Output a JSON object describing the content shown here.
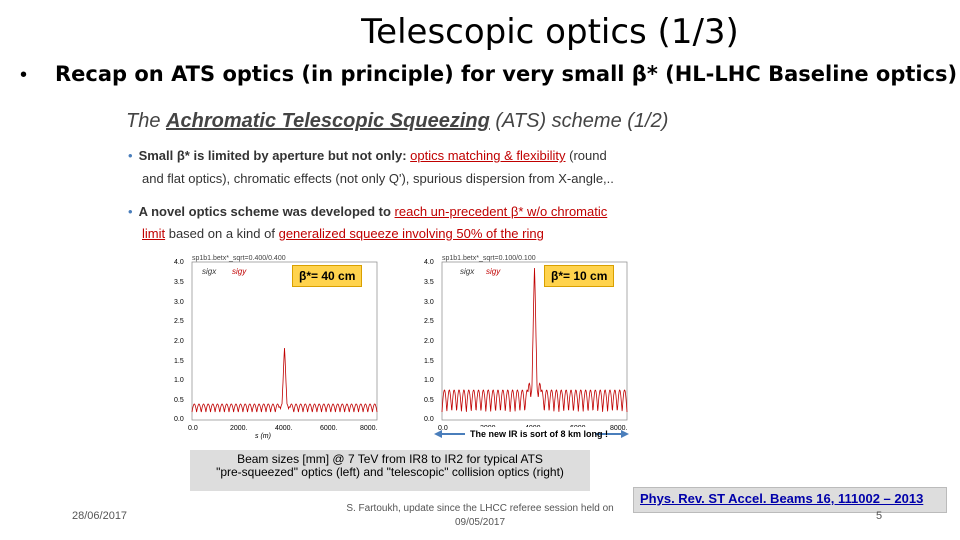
{
  "slide": {
    "title": "Telescopic optics (1/3)",
    "bullet": "•",
    "subtitle": "Recap on ATS optics (in principle) for very small β* (HL-LHC Baseline optics)"
  },
  "inner": {
    "title_pre": "The ",
    "title_emph": "Achromatic Telescopic Squeezing",
    "title_post": " (ATS) scheme (1/2)",
    "bullet1_line1_a": "Small β* is limited by aperture but not only: ",
    "bullet1_line1_red": "optics matching & flexibility",
    "bullet1_line1_b": " (round",
    "bullet1_line2": "and flat optics), chromatic effects (not only Q'), spurious dispersion from X-angle,..",
    "bullet2_line1_a": "A novel optics scheme was developed to ",
    "bullet2_line1_red": "reach un-precedent β* w/o chromatic",
    "bullet2_line2_red1": "limit",
    "bullet2_line2_b": "  based on a kind of ",
    "bullet2_line2_red2": "generalized squeeze involving 50% of the ring"
  },
  "plots": {
    "left": {
      "header": "sp1b1.betx*_sqrt=0.400/0.400",
      "legend_x": "sigx",
      "legend_y": "sigy",
      "badge": "β*= 40 cm",
      "xlabel": "s (m)",
      "yticks": [
        "4.0",
        "3.5",
        "3.0",
        "2.5",
        "2.0",
        "1.5",
        "1.0",
        "0.5",
        "0.0"
      ],
      "xticks": [
        "0.0",
        "2000.",
        "4000.",
        "6000.",
        "8000."
      ]
    },
    "right": {
      "header": "sp1b1.betx*_sqrt=0.100/0.100",
      "legend_x": "sigx",
      "legend_y": "sigy",
      "badge": "β*= 10 cm",
      "yticks": [
        "4.0",
        "3.5",
        "3.0",
        "2.5",
        "2.0",
        "1.5",
        "1.0",
        "0.5",
        "0.0"
      ],
      "xticks": [
        "0.0",
        "2000.",
        "4000.",
        "6000.",
        "8000."
      ],
      "arrow_label": "The new IR is sort of 8 km long !"
    },
    "caption_line1": "Beam sizes [mm] @ 7 TeV from IR8 to IR2 for typical ATS",
    "caption_line2": "\"pre-squeezed\" optics (left) and \"telescopic\" collision optics (right)"
  },
  "footer": {
    "date": "28/06/2017",
    "author_line1": "S. Fartoukh, update since the  LHCC referee session held on",
    "author_line2": "09/05/2017",
    "reference": "Phys. Rev. ST Accel. Beams 16, 111002 – 2013",
    "page": "5"
  },
  "colors": {
    "curve_red": "#c00000",
    "curve_dark": "#7a0000",
    "badge": "#ffd34d",
    "link": "#0000aa"
  }
}
